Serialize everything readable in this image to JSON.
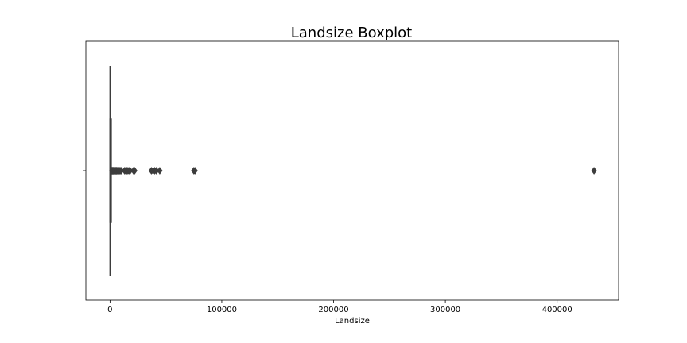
{
  "chart_data": {
    "type": "boxplot",
    "title": "Landsize Boxplot",
    "xlabel": "Landsize",
    "ylabel": "",
    "xlim": [
      -21600,
      455000
    ],
    "xticks": [
      0,
      100000,
      200000,
      300000,
      400000
    ],
    "xtick_labels": [
      "0",
      "100000",
      "200000",
      "300000",
      "400000"
    ],
    "orientation": "horizontal",
    "grid": false,
    "legend": "none",
    "box": {
      "min": 0,
      "q1": 0,
      "median": 440,
      "q3": 650,
      "whisker_high": 1625
    },
    "outliers": [
      1700,
      1900,
      2100,
      2400,
      2700,
      3000,
      3300,
      3600,
      4000,
      4400,
      4800,
      5200,
      5600,
      6000,
      6500,
      7000,
      7500,
      8000,
      8600,
      9200,
      10000,
      13000,
      14000,
      15000,
      16000,
      17000,
      18000,
      21000,
      22000,
      37000,
      38500,
      40000,
      41500,
      44500,
      75000,
      76000,
      433014
    ],
    "colors": {
      "line": "#3d3d3d",
      "box_face": "#3a6fa0",
      "outlier": "#3d3d3d",
      "frame": "#000000"
    }
  }
}
